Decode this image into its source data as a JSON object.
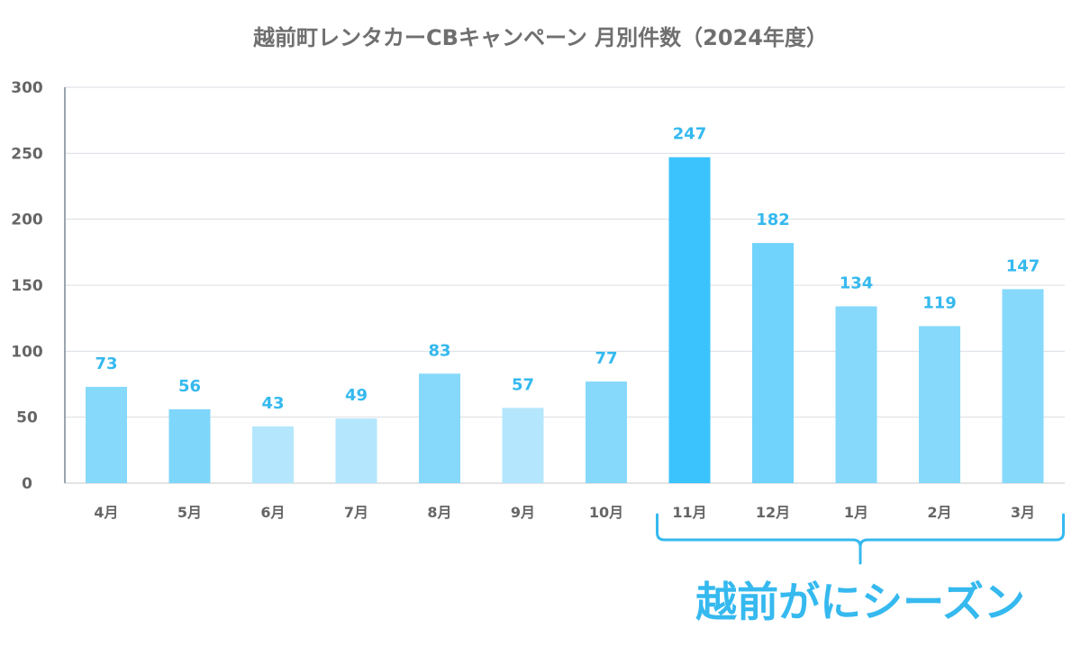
{
  "chart_data": {
    "type": "bar",
    "title": "越前町レンタカーCBキャンペーン 月別件数（2024年度）",
    "xlabel": "",
    "ylabel": "",
    "ylim": [
      0,
      300
    ],
    "yticks": [
      "0",
      "50",
      "100",
      "150",
      "200",
      "250",
      "300"
    ],
    "grid": true,
    "categories": [
      "4月",
      "5月",
      "6月",
      "7月",
      "8月",
      "9月",
      "10月",
      "11月",
      "12月",
      "1月",
      "2月",
      "3月"
    ],
    "values": [
      73,
      56,
      43,
      49,
      83,
      57,
      77,
      247,
      182,
      134,
      119,
      147
    ],
    "bar_colors": [
      "#86d9fb",
      "#7fd6fb",
      "#b4e7fd",
      "#b4e7fd",
      "#86d9fb",
      "#b4e7fd",
      "#86d9fb",
      "#3bc3fe",
      "#6fd3fc",
      "#86d9fb",
      "#86d9fb",
      "#86d9fb"
    ],
    "label_color": "#35b9ef",
    "annotation": {
      "text": "越前がにシーズン",
      "from_category": "11月",
      "to_category": "3月",
      "color": "#35b9ef"
    }
  }
}
